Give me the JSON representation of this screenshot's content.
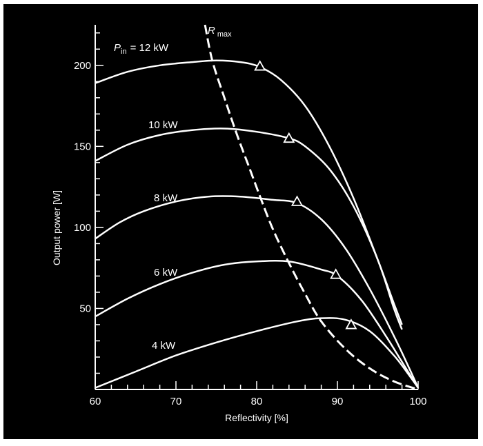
{
  "chart_data": {
    "type": "line",
    "xlabel": "Reflectivity [%]",
    "ylabel": "Output power [W]",
    "xlim": [
      60,
      100
    ],
    "ylim": [
      0,
      225
    ],
    "x_ticks": [
      60,
      70,
      80,
      90,
      100
    ],
    "y_ticks": [
      50,
      100,
      150,
      200
    ],
    "y_minor_step": 10,
    "x_minor_step": 2,
    "grid": false,
    "colors": {
      "background": "#000000",
      "foreground": "#ffffff"
    },
    "series": [
      {
        "name": "Pin = 12 kW",
        "label_prefix": "P",
        "label_sub": "in",
        "label_rest": "= 12 kW",
        "x": [
          60,
          64,
          68,
          72,
          75,
          78,
          80.4,
          83,
          86,
          89,
          92,
          95,
          97,
          98
        ],
        "y": [
          189,
          196,
          200,
          202,
          203,
          202,
          199,
          191,
          175,
          150,
          118,
          80,
          53,
          40
        ],
        "rmax_marker": [
          80.4,
          199.5
        ]
      },
      {
        "name": "10 kW",
        "x": [
          60,
          64,
          68,
          72,
          76,
          80,
          84,
          86,
          89,
          92,
          95,
          97,
          98
        ],
        "y": [
          141,
          151,
          157,
          160,
          161,
          159,
          155,
          150,
          136,
          113,
          80,
          50,
          37
        ],
        "rmax_marker": [
          84,
          155
        ]
      },
      {
        "name": "8 kW",
        "x": [
          60,
          63,
          66,
          70,
          74,
          78,
          82,
          85,
          88,
          91,
          94,
          97,
          99,
          100
        ],
        "y": [
          93,
          103,
          110,
          116,
          119,
          119,
          117,
          115,
          105,
          87,
          62,
          33,
          12,
          1
        ],
        "rmax_marker": [
          85,
          116
        ]
      },
      {
        "name": "6 kW",
        "x": [
          60,
          64,
          68,
          72,
          76,
          80,
          84,
          88,
          90,
          93,
          96,
          98,
          100
        ],
        "y": [
          45,
          56,
          65,
          72,
          77,
          79,
          79,
          74,
          70,
          55,
          33,
          17,
          1
        ],
        "rmax_marker": [
          89.8,
          71
        ]
      },
      {
        "name": "4 kW",
        "x": [
          60,
          65,
          70,
          75,
          80,
          85,
          88,
          91,
          94,
          97,
          99,
          100
        ],
        "y": [
          1,
          11,
          21,
          29,
          36,
          42,
          44,
          43,
          36,
          21,
          8,
          1
        ],
        "rmax_marker": [
          91.7,
          40
        ]
      }
    ],
    "rmax_curve": {
      "name": "R max",
      "label_main": "R",
      "label_sub": "max",
      "style": "dashed",
      "x": [
        73.6,
        74.5,
        76,
        77.5,
        79,
        80.5,
        82,
        84,
        86,
        88,
        91,
        94,
        97,
        100
      ],
      "y": [
        225,
        203,
        180,
        158,
        138,
        118,
        99,
        78,
        59,
        42,
        25,
        13,
        5,
        0
      ]
    }
  }
}
